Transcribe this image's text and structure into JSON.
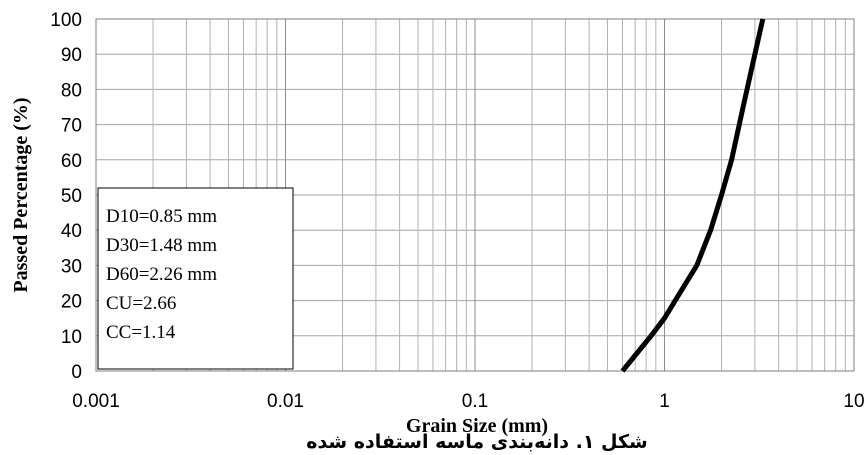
{
  "chart_data": {
    "type": "line",
    "title": "",
    "xlabel": "Grain Size (mm)",
    "ylabel": "Passed  Percentage (%)",
    "xscale": "log",
    "xlim": [
      0.001,
      10
    ],
    "ylim": [
      0,
      100
    ],
    "x_ticks": [
      0.001,
      0.01,
      0.1,
      1,
      10
    ],
    "x_tick_labels": [
      "0.001",
      "0.01",
      "0.1",
      "1",
      "10"
    ],
    "y_ticks": [
      0,
      10,
      20,
      30,
      40,
      50,
      60,
      70,
      80,
      90,
      100
    ],
    "y_tick_labels": [
      "0",
      "10",
      "20",
      "30",
      "40",
      "50",
      "60",
      "70",
      "80",
      "90",
      "100"
    ],
    "grid": true,
    "series": [
      {
        "color": "#000000",
        "x": [
          0.6,
          0.85,
          1.0,
          1.2,
          1.48,
          1.75,
          2.0,
          2.26,
          2.6,
          3.0,
          3.3
        ],
        "y": [
          0,
          10,
          15,
          22,
          30,
          40,
          50,
          60,
          75,
          90,
          100
        ]
      }
    ],
    "annotation": {
      "lines": [
        "D10=0.85 mm",
        "D30=1.48 mm",
        "D60=2.26 mm",
        "CU=2.66",
        "CC=1.14"
      ]
    }
  },
  "caption": "شکل ۱. دانه‌بندی ماسه استفاده شده"
}
